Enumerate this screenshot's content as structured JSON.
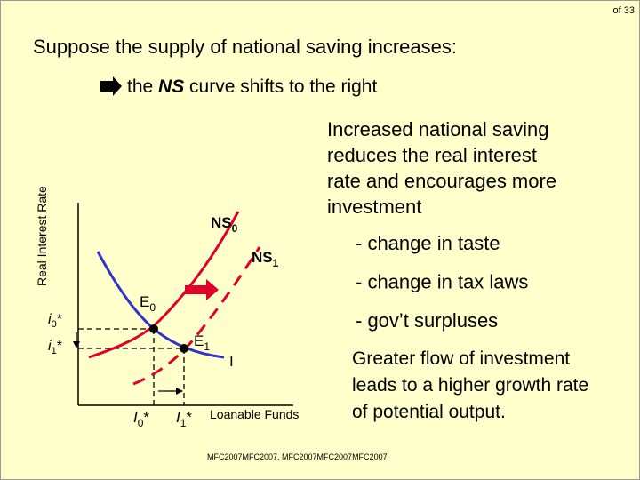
{
  "page_number": "of 33",
  "title": "Suppose the supply of national saving increases:",
  "subtitle": {
    "prefix": "the ",
    "emphasis": "NS",
    "suffix": " curve shifts to the right"
  },
  "diagram": {
    "y_axis_label": "Real Interest Rate",
    "x_axis_label": "Loanable Funds",
    "ns0_label": {
      "base": "NS",
      "sub": "0"
    },
    "ns1_label": {
      "base": "NS",
      "sub": "1"
    },
    "investment_label": "I",
    "e0_label": {
      "base": "E",
      "sub": "0"
    },
    "e1_label": {
      "base": "E",
      "sub": "1"
    },
    "i0_label": {
      "base": "i",
      "sub": "0",
      "star": "*"
    },
    "i1_label": {
      "base": "i",
      "sub": "1",
      "star": "*"
    },
    "I0_label": {
      "base": "I",
      "sub": "0",
      "star": "*"
    },
    "I1_label": {
      "base": "I",
      "sub": "1",
      "star": "*"
    }
  },
  "explanation": [
    "Increased national saving",
    "reduces the real interest",
    "rate and encourages more",
    "investment"
  ],
  "causes": [
    "- change in taste",
    "- change in tax laws",
    "- gov’t surpluses"
  ],
  "conclusion": [
    "Greater flow of investment",
    "leads to a higher growth rate",
    "of potential output."
  ],
  "footer": "MFC2007MFC2007, MFC2007MFC2007MFC2007"
}
